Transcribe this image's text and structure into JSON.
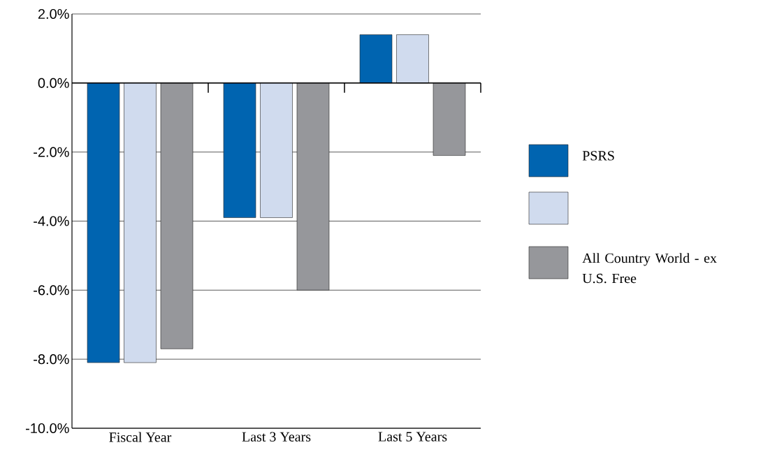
{
  "chart_data": {
    "type": "bar",
    "categories": [
      "Fiscal Year",
      "Last 3 Years",
      "Last 5 Years"
    ],
    "series": [
      {
        "name": "PSRS",
        "color": "#0064b0",
        "values": [
          -8.1,
          -3.9,
          1.4
        ]
      },
      {
        "color": "#d0dbee",
        "values": [
          -8.1,
          -3.9,
          1.4
        ]
      },
      {
        "name": "All Country World - ex U.S. Free",
        "color": "#96979b",
        "values": [
          -7.7,
          -6.0,
          -2.1
        ]
      }
    ],
    "ylim": [
      -10,
      2
    ],
    "yticks": [
      {
        "value": -10,
        "label": "-10.0%"
      },
      {
        "value": -8,
        "label": "-8.0%"
      },
      {
        "value": -6,
        "label": "-6.0%"
      },
      {
        "value": -4,
        "label": "-4.0%"
      },
      {
        "value": -2,
        "label": "-2.0%"
      },
      {
        "value": 0,
        "label": "0.0%"
      },
      {
        "value": 2,
        "label": "2.0%"
      }
    ],
    "grid": "y",
    "legend": "right"
  }
}
